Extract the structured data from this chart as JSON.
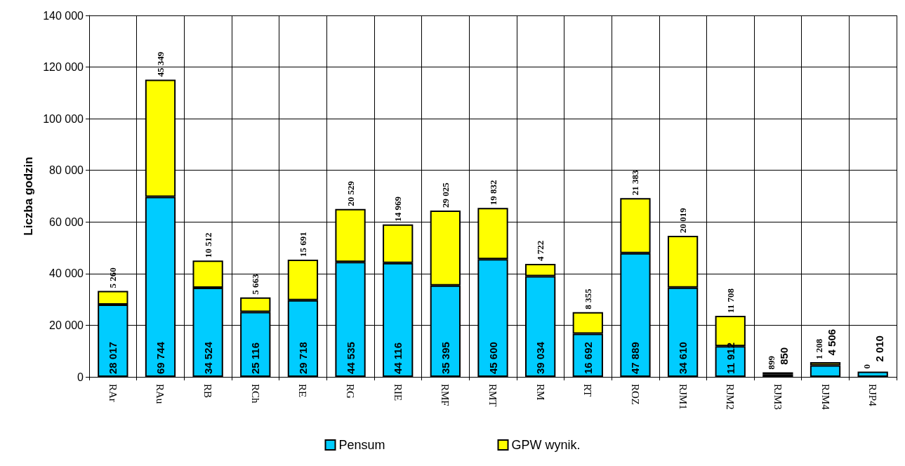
{
  "chart_data": {
    "type": "bar",
    "stacked": true,
    "ylabel": "Liczba godzin",
    "categories": [
      "RAr",
      "RAu",
      "RB",
      "RCh",
      "RE",
      "RG",
      "RIE",
      "RMF",
      "RMT",
      "RM",
      "RT",
      "ROZ",
      "RJM1",
      "RJM2",
      "RJM3",
      "RJM4",
      "RJP4"
    ],
    "series": [
      {
        "name": "Pensum",
        "color": "#00ccff",
        "values": [
          28017,
          69744,
          34524,
          25116,
          29718,
          44535,
          44116,
          35395,
          45600,
          39034,
          16692,
          47889,
          34610,
          11912,
          850,
          4506,
          2010
        ],
        "value_labels": [
          "28 017",
          "69 744",
          "34 524",
          "25 116",
          "29 718",
          "44 535",
          "44 116",
          "35 395",
          "45 600",
          "39 034",
          "16 692",
          "47 889",
          "34 610",
          "11 912",
          "850",
          "4 506",
          "2 010"
        ]
      },
      {
        "name": "GPW wynik.",
        "color": "#ffff00",
        "values": [
          5260,
          45349,
          10512,
          5663,
          15691,
          20529,
          14969,
          29025,
          19832,
          4722,
          8355,
          21383,
          20019,
          11708,
          899,
          1208,
          0
        ],
        "value_labels": [
          "5 260",
          "45 349",
          "10 512",
          "5 663",
          "15 691",
          "20 529",
          "14 969",
          "29 025",
          "19 832",
          "4 722",
          "8 355",
          "21 383",
          "20 019",
          "11 708",
          "899",
          "1 208",
          "0"
        ]
      }
    ],
    "ylim": [
      0,
      140000
    ],
    "yticks": [
      {
        "value": 0,
        "label": "0"
      },
      {
        "value": 20000,
        "label": "20 000"
      },
      {
        "value": 40000,
        "label": "40 000"
      },
      {
        "value": 60000,
        "label": "60 000"
      },
      {
        "value": 80000,
        "label": "80 000"
      },
      {
        "value": 100000,
        "label": "100 000"
      },
      {
        "value": 120000,
        "label": "120 000"
      },
      {
        "value": 140000,
        "label": "140 000"
      }
    ],
    "grid": true,
    "legend": "bottom"
  }
}
